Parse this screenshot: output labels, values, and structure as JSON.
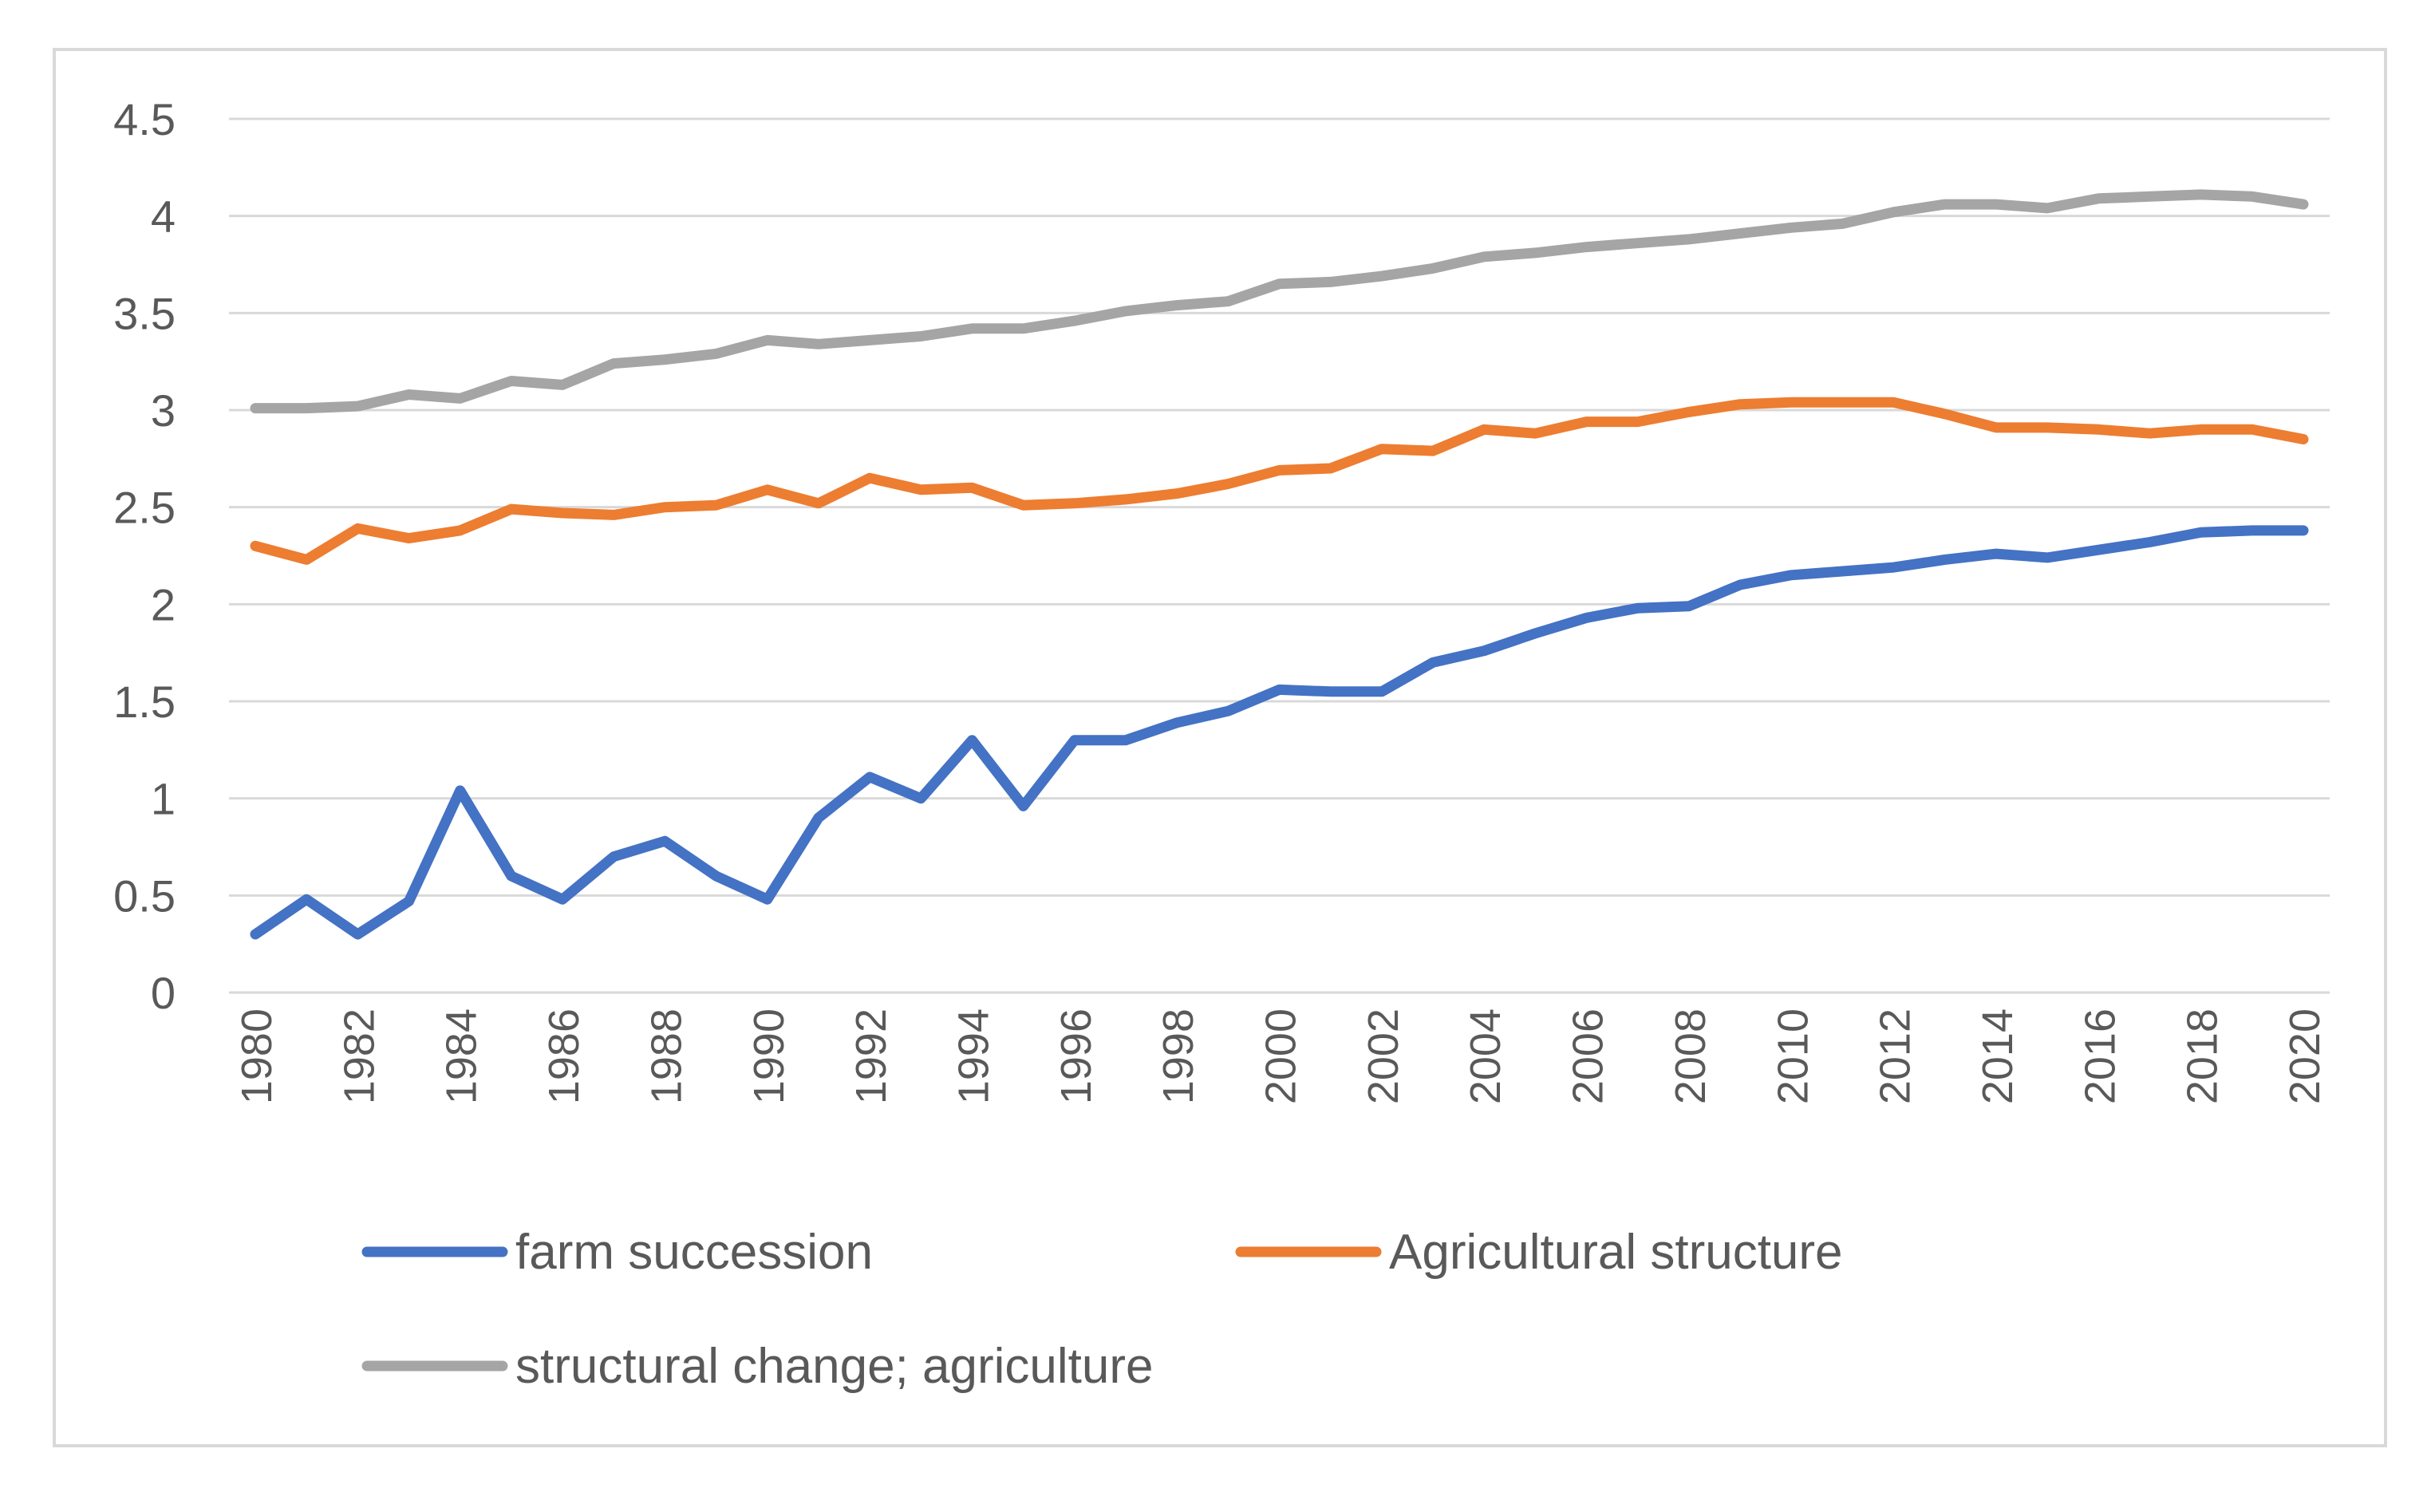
{
  "chart_data": {
    "type": "line",
    "title": "",
    "xlabel": "",
    "ylabel": "",
    "ylim": [
      0,
      4.5
    ],
    "ytick_step": 0.5,
    "grid": true,
    "legend_position": "bottom",
    "x": [
      1980,
      1981,
      1982,
      1983,
      1984,
      1985,
      1986,
      1987,
      1988,
      1989,
      1990,
      1991,
      1992,
      1993,
      1994,
      1995,
      1996,
      1997,
      1998,
      1999,
      2000,
      2001,
      2002,
      2003,
      2004,
      2005,
      2006,
      2007,
      2008,
      2009,
      2010,
      2011,
      2012,
      2013,
      2014,
      2015,
      2016,
      2017,
      2018,
      2019,
      2020
    ],
    "y_tick_labels": [
      "0",
      "0.5",
      "1",
      "1.5",
      "2",
      "2.5",
      "3",
      "3.5",
      "4",
      "4.5"
    ],
    "x_tick_labels": [
      "1980",
      "1982",
      "1984",
      "1986",
      "1988",
      "1990",
      "1992",
      "1994",
      "1996",
      "1998",
      "2000",
      "2002",
      "2004",
      "2006",
      "2008",
      "2010",
      "2012",
      "2014",
      "2016",
      "2018",
      "2020"
    ],
    "series": [
      {
        "name": "farm succession",
        "color": "#4472c4",
        "values": [
          0.3,
          0.48,
          0.3,
          0.47,
          1.04,
          0.6,
          0.48,
          0.7,
          0.78,
          0.6,
          0.48,
          0.9,
          1.11,
          1.0,
          1.3,
          0.96,
          1.3,
          1.3,
          1.39,
          1.45,
          1.56,
          1.55,
          1.55,
          1.7,
          1.76,
          1.85,
          1.93,
          1.98,
          1.99,
          2.1,
          2.15,
          2.17,
          2.19,
          2.23,
          2.26,
          2.24,
          2.28,
          2.32,
          2.37,
          2.38,
          2.38
        ]
      },
      {
        "name": "Agricultural structure",
        "color": "#ed7d31",
        "values": [
          2.3,
          2.23,
          2.39,
          2.34,
          2.38,
          2.49,
          2.47,
          2.46,
          2.5,
          2.51,
          2.59,
          2.52,
          2.65,
          2.59,
          2.6,
          2.51,
          2.52,
          2.54,
          2.57,
          2.62,
          2.69,
          2.7,
          2.8,
          2.79,
          2.9,
          2.88,
          2.94,
          2.94,
          2.99,
          3.03,
          3.04,
          3.04,
          3.04,
          2.98,
          2.91,
          2.91,
          2.9,
          2.88,
          2.9,
          2.9,
          2.85
        ]
      },
      {
        "name": "structural change; agriculture",
        "color": "#a5a5a5",
        "values": [
          3.01,
          3.01,
          3.02,
          3.08,
          3.06,
          3.15,
          3.13,
          3.24,
          3.26,
          3.29,
          3.36,
          3.34,
          3.36,
          3.38,
          3.42,
          3.42,
          3.46,
          3.51,
          3.54,
          3.56,
          3.65,
          3.66,
          3.69,
          3.73,
          3.79,
          3.81,
          3.84,
          3.86,
          3.88,
          3.91,
          3.94,
          3.96,
          4.02,
          4.06,
          4.06,
          4.04,
          4.09,
          4.1,
          4.11,
          4.1,
          4.06
        ]
      }
    ]
  }
}
